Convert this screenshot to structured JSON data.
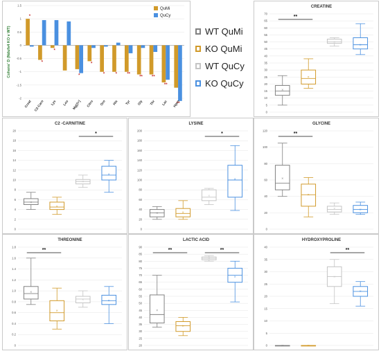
{
  "legend_main": [
    {
      "label": "WT QuMi",
      "color": "#808080"
    },
    {
      "label": "KO QuMi",
      "color": "#d19a2a"
    },
    {
      "label": "WT QuCy",
      "color": "#c4c4c4"
    },
    {
      "label": "KO QuCy",
      "color": "#4a90e0"
    }
  ],
  "chart_data": [
    {
      "type": "bar",
      "id": "cohen",
      "ylabel": "Cohens' D (Ndufs4 KO v WT)",
      "ylim": [
        -2.0,
        1.5
      ],
      "yticks": [
        "1.5",
        "1",
        "0.5",
        "0",
        "-0.5",
        "-1",
        "-1.5",
        "-2"
      ],
      "categories": [
        "Creat",
        "C2-Carn",
        "Lys",
        "Leu",
        "Mg[2+]",
        "Citru",
        "Orn",
        "His",
        "Tyr",
        "Gly",
        "Thr",
        "Lac",
        "Hpro"
      ],
      "series": [
        {
          "name": "QuMi",
          "color": "#d19a2a",
          "values": [
            1.0,
            -0.55,
            -0.1,
            -0.95,
            -0.9,
            -0.6,
            -1.0,
            -1.0,
            -1.0,
            -1.1,
            -1.1,
            -1.4,
            -1.6
          ]
        },
        {
          "name": "QuCy",
          "color": "#4a90e0",
          "values": [
            -0.05,
            0.95,
            0.95,
            0.9,
            -1.05,
            -0.1,
            -0.05,
            0.1,
            -0.3,
            -0.1,
            -0.25,
            -1.3,
            -2.1
          ]
        }
      ],
      "annotations": [
        "*",
        "*",
        "*",
        "",
        "*",
        "*",
        "*",
        "*",
        "**",
        "**",
        "**",
        "**",
        "**"
      ]
    },
    {
      "type": "box",
      "id": "creatine",
      "title": "CREATINE",
      "ylim": [
        0,
        70
      ],
      "yticks": [
        "70",
        "65",
        "60",
        "55",
        "50",
        "45",
        "40",
        "35",
        "30",
        "25",
        "20",
        "15",
        "10",
        "5",
        "0"
      ],
      "groups": [
        "WT QuMi",
        "KO QuMi",
        "WT QuCy",
        "KO QuCy"
      ],
      "boxes": [
        {
          "min": 5,
          "q1": 12,
          "median": 15,
          "q3": 19,
          "max": 26,
          "mean": 16
        },
        {
          "min": 17,
          "q1": 20,
          "median": 24,
          "q3": 30,
          "max": 38,
          "mean": 25
        },
        {
          "min": 47,
          "q1": 49,
          "median": 50,
          "q3": 52,
          "max": 53,
          "mean": 50
        },
        {
          "min": 41,
          "q1": 45,
          "median": 48,
          "q3": 53,
          "max": 63,
          "mean": 48
        }
      ],
      "sig": [
        {
          "from": 0,
          "to": 1,
          "label": "**"
        }
      ]
    },
    {
      "type": "box",
      "id": "c2carnitine",
      "title": "C2 -CARNITINE",
      "ylim": [
        0,
        20
      ],
      "yticks": [
        "20",
        "18",
        "16",
        "14",
        "12",
        "10",
        "8",
        "6",
        "4",
        "2",
        "0"
      ],
      "groups": [
        "WT QuMi",
        "KO QuMi",
        "WT QuCy",
        "KO QuCy"
      ],
      "boxes": [
        {
          "min": 4,
          "q1": 5,
          "median": 5.5,
          "q3": 6.2,
          "max": 7.5,
          "mean": 5.5
        },
        {
          "min": 3,
          "q1": 4,
          "median": 4.5,
          "q3": 5.5,
          "max": 6.5,
          "mean": 4.6
        },
        {
          "min": 8.5,
          "q1": 9.2,
          "median": 9.7,
          "q3": 10.1,
          "max": 11,
          "mean": 9.7
        },
        {
          "min": 7.5,
          "q1": 10,
          "median": 11,
          "q3": 12.8,
          "max": 14,
          "mean": 11.2
        }
      ],
      "sig": [
        {
          "from": 2,
          "to": 3,
          "label": "*"
        }
      ]
    },
    {
      "type": "box",
      "id": "lysine",
      "title": "LYSINE",
      "ylim": [
        0,
        200
      ],
      "yticks": [
        "200",
        "180",
        "160",
        "140",
        "120",
        "100",
        "80",
        "60",
        "40",
        "20",
        "0"
      ],
      "groups": [
        "WT QuMi",
        "KO QuMi",
        "WT QuCy",
        "KO QuCy"
      ],
      "boxes": [
        {
          "min": 20,
          "q1": 25,
          "median": 33,
          "q3": 40,
          "max": 46,
          "mean": 33
        },
        {
          "min": 20,
          "q1": 25,
          "median": 32,
          "q3": 42,
          "max": 58,
          "mean": 34
        },
        {
          "min": 50,
          "q1": 58,
          "median": 65,
          "q3": 80,
          "max": 83,
          "mean": 68
        },
        {
          "min": 38,
          "q1": 65,
          "median": 100,
          "q3": 130,
          "max": 170,
          "mean": 102
        }
      ],
      "sig": [
        {
          "from": 2,
          "to": 3,
          "label": "*"
        }
      ]
    },
    {
      "type": "box",
      "id": "glycine",
      "title": "GLYCINE",
      "ylim": [
        0,
        120
      ],
      "yticks": [
        "120",
        "100",
        "80",
        "60",
        "40",
        "20",
        "0"
      ],
      "groups": [
        "WT QuMi",
        "KO QuMi",
        "WT QuCy",
        "KO QuCy"
      ],
      "boxes": [
        {
          "min": 40,
          "q1": 48,
          "median": 56,
          "q3": 78,
          "max": 105,
          "mean": 62
        },
        {
          "min": 15,
          "q1": 28,
          "median": 42,
          "q3": 55,
          "max": 63,
          "mean": 42
        },
        {
          "min": 18,
          "q1": 21,
          "median": 24,
          "q3": 28,
          "max": 32,
          "mean": 25
        },
        {
          "min": 18,
          "q1": 20,
          "median": 24,
          "q3": 29,
          "max": 33,
          "mean": 24
        }
      ],
      "sig": [
        {
          "from": 0,
          "to": 1,
          "label": "**"
        }
      ]
    },
    {
      "type": "box",
      "id": "threonine",
      "title": "THREONINE",
      "ylim": [
        0,
        1.8
      ],
      "yticks": [
        "1.8",
        "1.6",
        "1.4",
        "1.2",
        "1.0",
        "0.8",
        "0.6",
        "0.4",
        "0.2",
        "0"
      ],
      "groups": [
        "WT QuMi",
        "KO QuMi",
        "WT QuCy",
        "KO QuCy"
      ],
      "boxes": [
        {
          "min": 0.75,
          "q1": 0.85,
          "median": 0.95,
          "q3": 1.08,
          "max": 1.6,
          "mean": 0.98
        },
        {
          "min": 0.3,
          "q1": 0.45,
          "median": 0.6,
          "q3": 0.82,
          "max": 1.05,
          "mean": 0.64
        },
        {
          "min": 0.7,
          "q1": 0.78,
          "median": 0.85,
          "q3": 0.9,
          "max": 1.0,
          "mean": 0.84
        },
        {
          "min": 0.4,
          "q1": 0.75,
          "median": 0.82,
          "q3": 0.92,
          "max": 1.08,
          "mean": 0.82
        }
      ],
      "sig": [
        {
          "from": 0,
          "to": 1,
          "label": "**"
        }
      ]
    },
    {
      "type": "box",
      "id": "lacticacid",
      "title": "LACTIC ACID",
      "ylim": [
        20,
        90
      ],
      "yticks": [
        "90",
        "85",
        "80",
        "75",
        "70",
        "65",
        "60",
        "55",
        "50",
        "45",
        "40",
        "35",
        "30",
        "25",
        "20"
      ],
      "groups": [
        "WT QuMi",
        "KO QuMi",
        "WT QuCy",
        "KO QuCy"
      ],
      "boxes": [
        {
          "min": 33,
          "q1": 36,
          "median": 42,
          "q3": 56,
          "max": 70,
          "mean": 45
        },
        {
          "min": 27,
          "q1": 30,
          "median": 34,
          "q3": 37,
          "max": 40,
          "mean": 34
        },
        {
          "min": 80,
          "q1": 81,
          "median": 82,
          "q3": 83,
          "max": 84,
          "mean": 82
        },
        {
          "min": 51,
          "q1": 65,
          "median": 70,
          "q3": 75,
          "max": 80,
          "mean": 69
        }
      ],
      "sig": [
        {
          "from": 0,
          "to": 1,
          "label": "**"
        },
        {
          "from": 2,
          "to": 3,
          "label": "**"
        }
      ]
    },
    {
      "type": "box",
      "id": "hydroxyproline",
      "title": "HYDROXYPROLINE",
      "ylim": [
        0,
        40
      ],
      "yticks": [
        "40",
        "35",
        "30",
        "25",
        "20",
        "15",
        "10",
        "5",
        "0"
      ],
      "groups": [
        "WT QuMi",
        "KO QuMi",
        "WT QuCy",
        "KO QuCy"
      ],
      "boxes": [
        {
          "min": 0,
          "q1": 0,
          "median": 0,
          "q3": 0,
          "max": 0,
          "mean": 0
        },
        {
          "min": 0,
          "q1": 0,
          "median": 0,
          "q3": 0,
          "max": 0,
          "mean": 0
        },
        {
          "min": 17,
          "q1": 24,
          "median": 28,
          "q3": 32,
          "max": 35,
          "mean": 28
        },
        {
          "min": 16,
          "q1": 20,
          "median": 22,
          "q3": 24,
          "max": 26,
          "mean": 22
        }
      ],
      "sig": [
        {
          "from": 2,
          "to": 3,
          "label": "**"
        }
      ]
    }
  ]
}
